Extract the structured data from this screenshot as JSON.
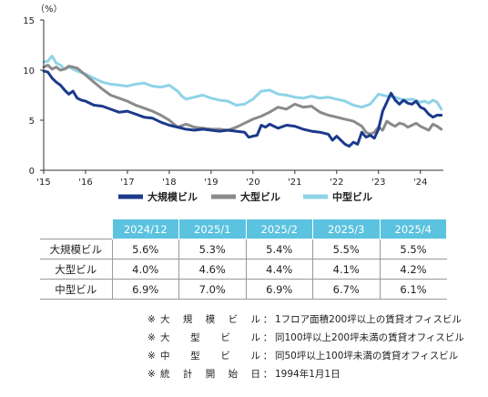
{
  "chart_data": {
    "type": "line",
    "unit_label": "（%）",
    "ylim": [
      0,
      15
    ],
    "yticks": [
      0,
      5,
      10,
      15
    ],
    "xlim": [
      2015.0,
      2024.55
    ],
    "xticks": [
      {
        "value": 2015,
        "label": "'15"
      },
      {
        "value": 2016,
        "label": "'16"
      },
      {
        "value": 2017,
        "label": "'17"
      },
      {
        "value": 2018,
        "label": "'18"
      },
      {
        "value": 2019,
        "label": "'19"
      },
      {
        "value": 2020,
        "label": "'20"
      },
      {
        "value": 2021,
        "label": "'21"
      },
      {
        "value": 2022,
        "label": "'22"
      },
      {
        "value": 2023,
        "label": "'23"
      },
      {
        "value": 2024,
        "label": "'24"
      }
    ],
    "legend_position": "bottom",
    "series": [
      {
        "name": "大規模ビル",
        "color": "#1b3a8c",
        "points": [
          [
            2015.0,
            9.9
          ],
          [
            2015.1,
            9.8
          ],
          [
            2015.2,
            9.2
          ],
          [
            2015.3,
            8.8
          ],
          [
            2015.4,
            8.5
          ],
          [
            2015.5,
            8.0
          ],
          [
            2015.6,
            7.6
          ],
          [
            2015.7,
            7.9
          ],
          [
            2015.8,
            7.2
          ],
          [
            2015.9,
            7.0
          ],
          [
            2016.0,
            6.9
          ],
          [
            2016.2,
            6.5
          ],
          [
            2016.4,
            6.4
          ],
          [
            2016.6,
            6.1
          ],
          [
            2016.8,
            5.8
          ],
          [
            2017.0,
            5.9
          ],
          [
            2017.2,
            5.6
          ],
          [
            2017.4,
            5.3
          ],
          [
            2017.6,
            5.2
          ],
          [
            2017.8,
            4.8
          ],
          [
            2018.0,
            4.5
          ],
          [
            2018.2,
            4.3
          ],
          [
            2018.4,
            4.1
          ],
          [
            2018.6,
            4.0
          ],
          [
            2018.8,
            4.1
          ],
          [
            2019.0,
            4.0
          ],
          [
            2019.2,
            3.9
          ],
          [
            2019.4,
            4.0
          ],
          [
            2019.6,
            3.9
          ],
          [
            2019.8,
            3.8
          ],
          [
            2019.9,
            3.3
          ],
          [
            2020.0,
            3.4
          ],
          [
            2020.1,
            3.5
          ],
          [
            2020.2,
            4.5
          ],
          [
            2020.3,
            4.3
          ],
          [
            2020.4,
            4.6
          ],
          [
            2020.5,
            4.4
          ],
          [
            2020.6,
            4.2
          ],
          [
            2020.8,
            4.5
          ],
          [
            2021.0,
            4.4
          ],
          [
            2021.2,
            4.1
          ],
          [
            2021.4,
            3.9
          ],
          [
            2021.6,
            3.8
          ],
          [
            2021.8,
            3.6
          ],
          [
            2021.9,
            3.0
          ],
          [
            2022.0,
            3.4
          ],
          [
            2022.1,
            3.0
          ],
          [
            2022.2,
            2.6
          ],
          [
            2022.3,
            2.4
          ],
          [
            2022.4,
            2.8
          ],
          [
            2022.5,
            2.6
          ],
          [
            2022.6,
            3.8
          ],
          [
            2022.7,
            3.3
          ],
          [
            2022.8,
            3.5
          ],
          [
            2022.9,
            3.2
          ],
          [
            2023.0,
            4.1
          ],
          [
            2023.1,
            5.9
          ],
          [
            2023.2,
            6.8
          ],
          [
            2023.3,
            7.7
          ],
          [
            2023.4,
            7.0
          ],
          [
            2023.5,
            6.6
          ],
          [
            2023.6,
            7.0
          ],
          [
            2023.7,
            6.7
          ],
          [
            2023.8,
            6.6
          ],
          [
            2023.9,
            6.9
          ],
          [
            2024.0,
            6.3
          ],
          [
            2024.1,
            6.1
          ],
          [
            2024.2,
            5.6
          ],
          [
            2024.3,
            5.3
          ],
          [
            2024.4,
            5.5
          ],
          [
            2024.5,
            5.5
          ]
        ]
      },
      {
        "name": "大型ビル",
        "color": "#8a8a8a",
        "points": [
          [
            2015.0,
            10.3
          ],
          [
            2015.1,
            10.5
          ],
          [
            2015.2,
            10.1
          ],
          [
            2015.3,
            10.3
          ],
          [
            2015.4,
            10.0
          ],
          [
            2015.5,
            10.1
          ],
          [
            2015.6,
            10.4
          ],
          [
            2015.8,
            10.2
          ],
          [
            2016.0,
            9.5
          ],
          [
            2016.2,
            8.8
          ],
          [
            2016.4,
            8.1
          ],
          [
            2016.6,
            7.5
          ],
          [
            2016.8,
            7.2
          ],
          [
            2017.0,
            6.9
          ],
          [
            2017.2,
            6.5
          ],
          [
            2017.4,
            6.2
          ],
          [
            2017.6,
            5.9
          ],
          [
            2017.8,
            5.5
          ],
          [
            2018.0,
            5.0
          ],
          [
            2018.2,
            4.3
          ],
          [
            2018.4,
            4.6
          ],
          [
            2018.6,
            4.3
          ],
          [
            2018.8,
            4.2
          ],
          [
            2019.0,
            4.1
          ],
          [
            2019.2,
            4.1
          ],
          [
            2019.4,
            4.0
          ],
          [
            2019.6,
            4.3
          ],
          [
            2019.8,
            4.7
          ],
          [
            2020.0,
            5.1
          ],
          [
            2020.2,
            5.4
          ],
          [
            2020.4,
            5.8
          ],
          [
            2020.6,
            6.3
          ],
          [
            2020.8,
            6.1
          ],
          [
            2021.0,
            6.6
          ],
          [
            2021.2,
            6.3
          ],
          [
            2021.4,
            6.4
          ],
          [
            2021.6,
            5.8
          ],
          [
            2021.8,
            5.5
          ],
          [
            2022.0,
            5.3
          ],
          [
            2022.2,
            5.1
          ],
          [
            2022.4,
            4.9
          ],
          [
            2022.6,
            4.4
          ],
          [
            2022.7,
            3.8
          ],
          [
            2022.8,
            3.6
          ],
          [
            2022.9,
            3.8
          ],
          [
            2023.0,
            4.3
          ],
          [
            2023.1,
            4.0
          ],
          [
            2023.2,
            4.9
          ],
          [
            2023.3,
            4.6
          ],
          [
            2023.4,
            4.4
          ],
          [
            2023.5,
            4.7
          ],
          [
            2023.6,
            4.6
          ],
          [
            2023.7,
            4.3
          ],
          [
            2023.8,
            4.5
          ],
          [
            2023.9,
            4.7
          ],
          [
            2024.0,
            4.4
          ],
          [
            2024.1,
            4.2
          ],
          [
            2024.2,
            4.0
          ],
          [
            2024.3,
            4.6
          ],
          [
            2024.4,
            4.4
          ],
          [
            2024.5,
            4.1
          ]
        ]
      },
      {
        "name": "中型ビル",
        "color": "#8fd3e8",
        "points": [
          [
            2015.0,
            10.8
          ],
          [
            2015.1,
            10.9
          ],
          [
            2015.2,
            11.4
          ],
          [
            2015.3,
            10.7
          ],
          [
            2015.4,
            10.5
          ],
          [
            2015.5,
            10.1
          ],
          [
            2015.6,
            10.3
          ],
          [
            2015.8,
            9.9
          ],
          [
            2016.0,
            9.6
          ],
          [
            2016.2,
            9.2
          ],
          [
            2016.4,
            8.8
          ],
          [
            2016.6,
            8.6
          ],
          [
            2016.8,
            8.5
          ],
          [
            2017.0,
            8.4
          ],
          [
            2017.2,
            8.6
          ],
          [
            2017.4,
            8.7
          ],
          [
            2017.6,
            8.4
          ],
          [
            2017.8,
            8.3
          ],
          [
            2018.0,
            8.5
          ],
          [
            2018.2,
            7.9
          ],
          [
            2018.3,
            7.4
          ],
          [
            2018.4,
            7.1
          ],
          [
            2018.6,
            7.3
          ],
          [
            2018.8,
            7.5
          ],
          [
            2019.0,
            7.2
          ],
          [
            2019.2,
            7.0
          ],
          [
            2019.4,
            6.9
          ],
          [
            2019.6,
            6.5
          ],
          [
            2019.8,
            6.6
          ],
          [
            2020.0,
            7.1
          ],
          [
            2020.2,
            7.9
          ],
          [
            2020.4,
            8.0
          ],
          [
            2020.6,
            7.6
          ],
          [
            2020.8,
            7.5
          ],
          [
            2021.0,
            7.3
          ],
          [
            2021.2,
            7.2
          ],
          [
            2021.4,
            7.4
          ],
          [
            2021.6,
            7.2
          ],
          [
            2021.8,
            7.3
          ],
          [
            2022.0,
            7.1
          ],
          [
            2022.2,
            6.9
          ],
          [
            2022.4,
            6.5
          ],
          [
            2022.6,
            6.3
          ],
          [
            2022.8,
            6.6
          ],
          [
            2023.0,
            7.6
          ],
          [
            2023.2,
            7.4
          ],
          [
            2023.4,
            7.3
          ],
          [
            2023.6,
            7.0
          ],
          [
            2023.8,
            7.1
          ],
          [
            2024.0,
            6.8
          ],
          [
            2024.1,
            6.9
          ],
          [
            2024.2,
            6.7
          ],
          [
            2024.3,
            7.0
          ],
          [
            2024.4,
            6.8
          ],
          [
            2024.5,
            6.1
          ]
        ]
      }
    ]
  },
  "table": {
    "columns": [
      "2024/12",
      "2025/1",
      "2025/2",
      "2025/3",
      "2025/4"
    ],
    "rows": [
      {
        "label": "大規模ビル",
        "values": [
          "5.6%",
          "5.3%",
          "5.4%",
          "5.5%",
          "5.5%"
        ]
      },
      {
        "label": "大型ビル",
        "values": [
          "4.0%",
          "4.6%",
          "4.4%",
          "4.1%",
          "4.2%"
        ]
      },
      {
        "label": "中型ビル",
        "values": [
          "6.9%",
          "7.0%",
          "6.9%",
          "6.7%",
          "6.1%"
        ]
      }
    ]
  },
  "notes": [
    {
      "mark": "※",
      "key": "大規模ビル",
      "sep": "：",
      "text": "1フロア面積200坪以上の賃貸オフィスビル"
    },
    {
      "mark": "※",
      "key": "大型ビル",
      "sep": "：",
      "text": "同100坪以上200坪未満の賃貸オフィスビル"
    },
    {
      "mark": "※",
      "key": "中型ビル",
      "sep": "：",
      "text": "同50坪以上100坪未満の賃貸オフィスビル"
    },
    {
      "mark": "※",
      "key": "統計開始日",
      "sep": "：",
      "text": "1994年1月1日"
    }
  ],
  "colors": {
    "header_bg": "#5bc2df",
    "large_scale": "#1b3a8c",
    "large": "#8a8a8a",
    "medium": "#8fd3e8"
  }
}
